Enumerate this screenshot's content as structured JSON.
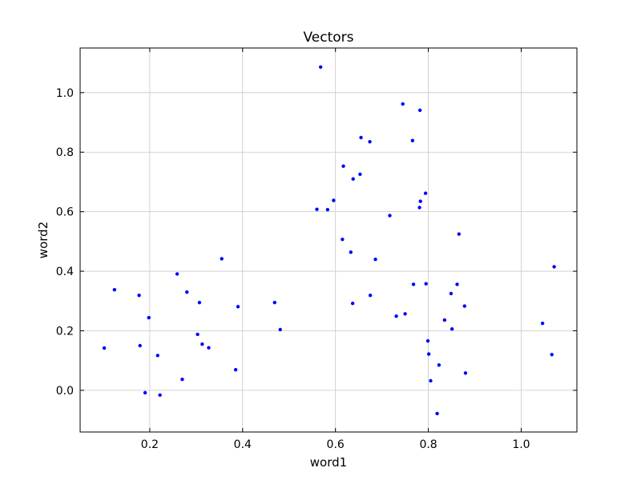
{
  "chart_data": {
    "type": "scatter",
    "title": "Vectors",
    "xlabel": "word1",
    "ylabel": "word2",
    "xlim": [
      0.05,
      1.12
    ],
    "ylim": [
      -0.14,
      1.15
    ],
    "x_ticks": [
      0.2,
      0.4,
      0.6,
      0.8,
      1.0
    ],
    "x_tick_labels": [
      "0.2",
      "0.4",
      "0.6",
      "0.8",
      "1.0"
    ],
    "y_ticks": [
      0.0,
      0.2,
      0.4,
      0.6,
      0.8,
      1.0
    ],
    "y_tick_labels": [
      "0.0",
      "0.2",
      "0.4",
      "0.6",
      "0.8",
      "1.0"
    ],
    "grid": true,
    "marker_color": "#0000ff",
    "series": [
      {
        "points": [
          [
            0.102,
            0.142
          ],
          [
            0.124,
            0.338
          ],
          [
            0.177,
            0.319
          ],
          [
            0.179,
            0.15
          ],
          [
            0.19,
            -0.008
          ],
          [
            0.198,
            0.244
          ],
          [
            0.217,
            0.117
          ],
          [
            0.222,
            -0.016
          ],
          [
            0.259,
            0.391
          ],
          [
            0.27,
            0.037
          ],
          [
            0.28,
            0.33
          ],
          [
            0.303,
            0.188
          ],
          [
            0.307,
            0.295
          ],
          [
            0.313,
            0.155
          ],
          [
            0.327,
            0.143
          ],
          [
            0.355,
            0.442
          ],
          [
            0.385,
            0.069
          ],
          [
            0.39,
            0.281
          ],
          [
            0.469,
            0.295
          ],
          [
            0.481,
            0.204
          ],
          [
            0.56,
            0.608
          ],
          [
            0.568,
            1.086
          ],
          [
            0.583,
            0.607
          ],
          [
            0.596,
            0.638
          ],
          [
            0.615,
            0.507
          ],
          [
            0.617,
            0.753
          ],
          [
            0.633,
            0.464
          ],
          [
            0.637,
            0.292
          ],
          [
            0.638,
            0.71
          ],
          [
            0.653,
            0.726
          ],
          [
            0.655,
            0.849
          ],
          [
            0.674,
            0.835
          ],
          [
            0.675,
            0.319
          ],
          [
            0.686,
            0.44
          ],
          [
            0.717,
            0.587
          ],
          [
            0.731,
            0.249
          ],
          [
            0.745,
            0.962
          ],
          [
            0.75,
            0.257
          ],
          [
            0.766,
            0.839
          ],
          [
            0.768,
            0.356
          ],
          [
            0.781,
            0.614
          ],
          [
            0.782,
            0.941
          ],
          [
            0.783,
            0.635
          ],
          [
            0.794,
            0.662
          ],
          [
            0.795,
            0.358
          ],
          [
            0.799,
            0.166
          ],
          [
            0.801,
            0.122
          ],
          [
            0.805,
            0.032
          ],
          [
            0.819,
            -0.078
          ],
          [
            0.823,
            0.085
          ],
          [
            0.835,
            0.236
          ],
          [
            0.849,
            0.325
          ],
          [
            0.851,
            0.206
          ],
          [
            0.862,
            0.356
          ],
          [
            0.866,
            0.525
          ],
          [
            0.878,
            0.283
          ],
          [
            0.88,
            0.058
          ],
          [
            1.046,
            0.225
          ],
          [
            1.066,
            0.12
          ],
          [
            1.071,
            0.415
          ]
        ]
      }
    ]
  }
}
